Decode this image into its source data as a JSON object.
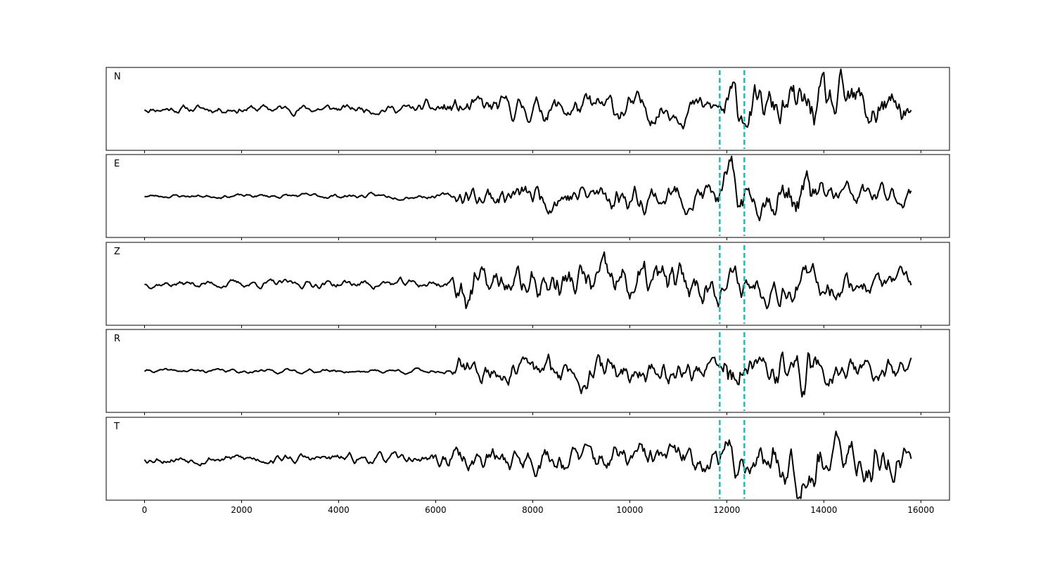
{
  "chart_data": {
    "type": "line",
    "title": "",
    "xlabel": "",
    "ylabel": "",
    "xlim": [
      -790,
      16590
    ],
    "ylim": [
      -1.2,
      1.2
    ],
    "x_range_of_data": [
      0,
      15800
    ],
    "xticks": [
      0,
      2000,
      4000,
      6000,
      8000,
      10000,
      12000,
      14000,
      16000
    ],
    "xtick_labels": [
      "0",
      "2000",
      "4000",
      "6000",
      "8000",
      "10000",
      "12000",
      "14000",
      "16000"
    ],
    "grid": false,
    "yticks_visible": false,
    "shared_x": true,
    "vertical_markers": [
      11855,
      12362
    ],
    "vertical_marker_style": "dashed",
    "colors": {
      "trace": "#000000",
      "marker": "#17bfbf"
    },
    "subplots": [
      {
        "label": "N",
        "seed": 11,
        "amplitude_envelope": [
          [
            0,
            0.12
          ],
          [
            5600,
            0.14
          ],
          [
            6000,
            0.32
          ],
          [
            10000,
            0.42
          ],
          [
            11800,
            0.35
          ],
          [
            12000,
            0.85
          ],
          [
            12400,
            0.6
          ],
          [
            13500,
            0.75
          ],
          [
            14900,
            0.85
          ],
          [
            15800,
            0.45
          ]
        ]
      },
      {
        "label": "E",
        "seed": 23,
        "amplitude_envelope": [
          [
            0,
            0.05
          ],
          [
            6300,
            0.08
          ],
          [
            6500,
            0.32
          ],
          [
            9000,
            0.42
          ],
          [
            11800,
            0.4
          ],
          [
            12050,
            0.85
          ],
          [
            12500,
            0.4
          ],
          [
            13600,
            0.8
          ],
          [
            14000,
            0.4
          ],
          [
            15800,
            0.3
          ]
        ]
      },
      {
        "label": "Z",
        "seed": 37,
        "amplitude_envelope": [
          [
            0,
            0.1
          ],
          [
            6300,
            0.14
          ],
          [
            6550,
            0.9
          ],
          [
            7000,
            0.4
          ],
          [
            8800,
            0.6
          ],
          [
            10500,
            0.65
          ],
          [
            12000,
            0.45
          ],
          [
            13200,
            0.5
          ],
          [
            15800,
            0.3
          ]
        ]
      },
      {
        "label": "R",
        "seed": 41,
        "amplitude_envelope": [
          [
            0,
            0.05
          ],
          [
            6300,
            0.07
          ],
          [
            6500,
            0.35
          ],
          [
            9500,
            0.42
          ],
          [
            11800,
            0.35
          ],
          [
            12050,
            0.9
          ],
          [
            12500,
            0.35
          ],
          [
            13600,
            0.75
          ],
          [
            14000,
            0.4
          ],
          [
            15800,
            0.3
          ]
        ]
      },
      {
        "label": "T",
        "seed": 53,
        "amplitude_envelope": [
          [
            0,
            0.12
          ],
          [
            5800,
            0.15
          ],
          [
            6000,
            0.32
          ],
          [
            10000,
            0.42
          ],
          [
            11800,
            0.4
          ],
          [
            12100,
            0.75
          ],
          [
            12500,
            0.45
          ],
          [
            13600,
            0.85
          ],
          [
            14400,
            0.5
          ],
          [
            15000,
            0.8
          ],
          [
            15800,
            0.4
          ]
        ]
      }
    ]
  }
}
